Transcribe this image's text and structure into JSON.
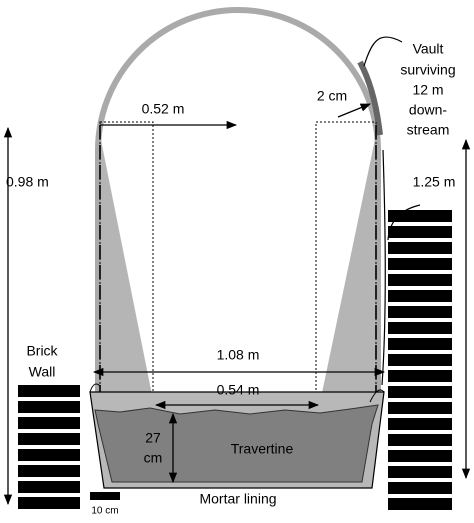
{
  "labels": {
    "vault": [
      "Vault",
      "surviving",
      "12 m",
      "down-",
      "stream"
    ],
    "thickness": "2 cm",
    "half_span": "0.52 m",
    "left_height": "0.98 m",
    "right_height": "1.25 m",
    "brick_wall": [
      "Brick",
      "Wall"
    ],
    "full_span": "1.08 m",
    "floor_span": "0.54 m",
    "deposit_depth": [
      "27",
      "cm"
    ],
    "travertine": "Travertine",
    "mortar": "Mortar lining",
    "scale": "10 cm"
  }
}
